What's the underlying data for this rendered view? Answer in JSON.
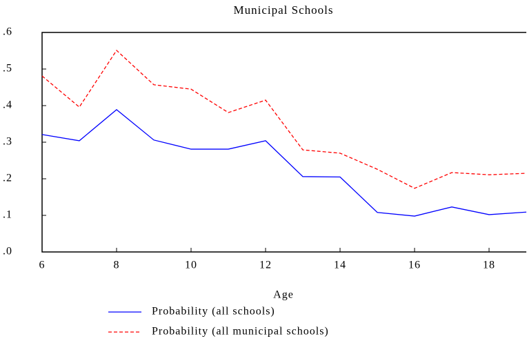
{
  "chart_data": {
    "type": "line",
    "title": "Municipal Schools",
    "x_label": "Age",
    "x": [
      6,
      7,
      8,
      9,
      10,
      11,
      12,
      13,
      14,
      15,
      16,
      17,
      18,
      19
    ],
    "series": [
      {
        "name": "Probability (all schools)",
        "color": "#0000ff",
        "line_style": "solid",
        "values": [
          0.321,
          0.304,
          0.389,
          0.306,
          0.281,
          0.281,
          0.304,
          0.206,
          0.205,
          0.108,
          0.098,
          0.123,
          0.102,
          0.109
        ]
      },
      {
        "name": "Probability (all municipal schools)",
        "color": "#ff0000",
        "line_style": "dashed",
        "values": [
          0.481,
          0.396,
          0.551,
          0.457,
          0.445,
          0.381,
          0.415,
          0.279,
          0.27,
          0.226,
          0.174,
          0.217,
          0.211,
          0.215
        ]
      }
    ],
    "xlim": [
      6,
      19
    ],
    "xticks": [
      6,
      8,
      10,
      12,
      14,
      16,
      18
    ],
    "ylim": [
      0,
      0.6
    ],
    "yticks": [
      {
        "value": 0,
        "label": ".0"
      },
      {
        "value": 0.1,
        "label": ".1"
      },
      {
        "value": 0.2,
        "label": ".2"
      },
      {
        "value": 0.3,
        "label": ".3"
      },
      {
        "value": 0.4,
        "label": ".4"
      },
      {
        "value": 0.5,
        "label": ".5"
      },
      {
        "value": 0.6,
        "label": ".6"
      }
    ]
  }
}
